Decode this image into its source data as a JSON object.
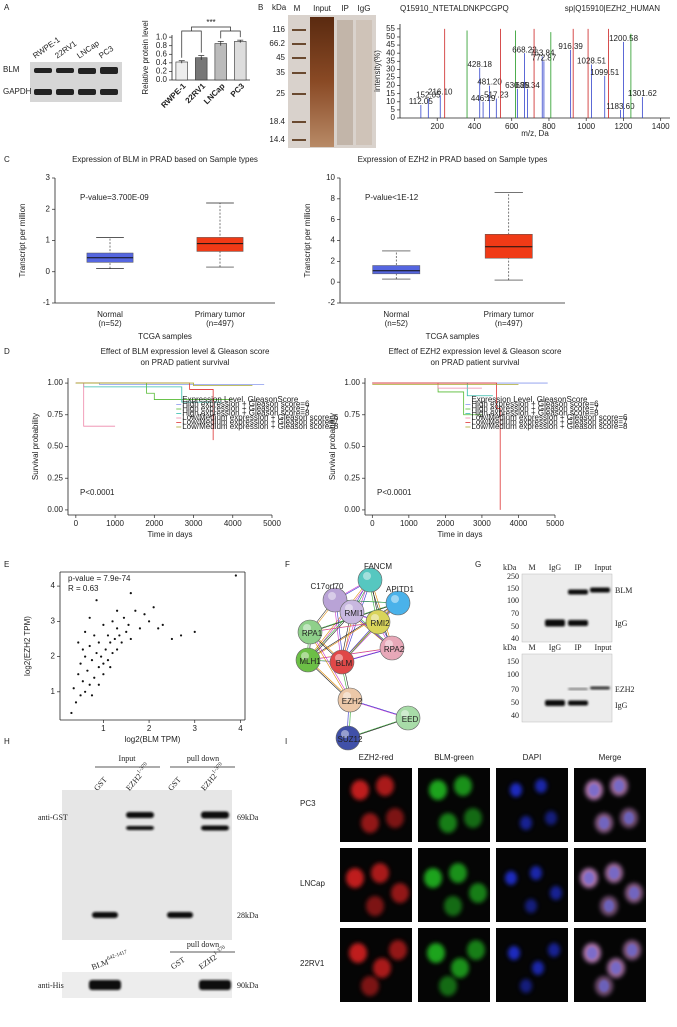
{
  "panel_letters": [
    "A",
    "B",
    "C",
    "D",
    "E",
    "F",
    "G",
    "H",
    "I"
  ],
  "panel_a": {
    "cell_lines": [
      "RWPE-1",
      "22RV1",
      "LNCap",
      "PC3"
    ],
    "proteins": [
      "BLM",
      "GAPDH"
    ]
  },
  "panel_b": {
    "kda": "kDa",
    "lanes": [
      "M",
      "Input",
      "IP",
      "IgG"
    ],
    "markers": [
      "116",
      "66.2",
      "45",
      "35",
      "25",
      "18.4",
      "14.4"
    ]
  },
  "panel_f": {
    "nodes": [
      "FANCM",
      "C17orf70",
      "APITD1",
      "RMI1",
      "RMI2",
      "RPA1",
      "RPA2",
      "MLH1",
      "BLM",
      "EZH2",
      "EED",
      "SUZ12"
    ]
  },
  "panel_g": {
    "blots": [
      {
        "kda": "kDa",
        "lanes": [
          "M",
          "IgG",
          "IP",
          "Input"
        ],
        "markers": [
          "250",
          "150",
          "100",
          "70",
          "50",
          "40"
        ],
        "bands": [
          "BLM",
          "IgG"
        ]
      },
      {
        "kda": "kDa",
        "lanes": [
          "M",
          "IgG",
          "IP",
          "Input"
        ],
        "markers": [
          "150",
          "100",
          "70",
          "50",
          "40"
        ],
        "bands": [
          "EZH2",
          "IgG"
        ]
      }
    ]
  },
  "panel_h": {
    "upper": {
      "groups": [
        "Input",
        "pull down"
      ],
      "lanes": [
        {
          "name": "GST"
        },
        {
          "name": "EZH2",
          "sup": "1-370"
        },
        {
          "name": "GST"
        },
        {
          "name": "EZH2",
          "sup": "1-370"
        }
      ],
      "antibody": "anti-GST",
      "sizes": [
        "69kDa",
        "28kDa"
      ]
    },
    "lower": {
      "group": "pull down",
      "lanes": [
        {
          "name": "BLM",
          "sup": "642-1417"
        },
        {
          "name": "GST"
        },
        {
          "name": "EZH2",
          "sup": "1-370"
        }
      ],
      "antibody": "anti-His",
      "size": "90kDa"
    }
  },
  "panel_i": {
    "channels": [
      "EZH2-red",
      "BLM-green",
      "DAPI",
      "Merge"
    ],
    "cell_lines": [
      "PC3",
      "LNCap",
      "22RV1"
    ]
  },
  "chart_data": [
    {
      "type": "bar",
      "ylabel": "Relative protein level",
      "categories": [
        "RWPE-1",
        "22RV1",
        "LNCap",
        "PC3"
      ],
      "values": [
        0.42,
        0.52,
        0.85,
        0.9
      ],
      "errors": [
        0.03,
        0.05,
        0.05,
        0.03
      ],
      "colors": [
        "#eeeeee",
        "#777777",
        "#bbbbbb",
        "#dddddd"
      ],
      "ylim": [
        0,
        1.05
      ],
      "yticks": [
        {
          "value": 0,
          "label": "0.0"
        },
        0.2,
        0.4,
        0.6,
        0.8,
        {
          "value": 1,
          "label": "1.0"
        }
      ],
      "significance": "***"
    },
    {
      "type": "stem",
      "title": "Q15910_NTETALDNKPCGPQ",
      "subtitle": "sp|Q15910|EZH2_HUMAN",
      "xlabel": "m/z, Da",
      "ylabel": "intensity(%)",
      "x": [
        112.05,
        152.05,
        216.1,
        240,
        360,
        428.18,
        446.19,
        481.2,
        517.23,
        540,
        620,
        630.28,
        668.22,
        685.34,
        720,
        763.84,
        772.87,
        810,
        916.39,
        930,
        1010,
        1028.51,
        1099.51,
        1120,
        1183.6,
        1200.58,
        1240,
        1301.62
      ],
      "values": [
        8,
        12,
        14,
        55,
        54,
        31,
        10,
        20,
        12,
        55,
        54,
        18,
        40,
        18,
        55,
        38,
        35,
        53,
        42,
        55,
        55,
        33,
        26,
        55,
        5,
        47,
        52,
        13
      ],
      "peak_labels": [
        "112.05",
        "152.05",
        "216.10",
        null,
        null,
        "428.18",
        "446.19",
        "481.20",
        "517.23",
        null,
        null,
        "630.28",
        "668.22",
        "685.34",
        null,
        "763.84",
        "772.87",
        null,
        "916.39",
        null,
        null,
        "1028.51",
        "1099.51",
        null,
        "1183.60",
        "1200.58",
        null,
        "1301.62"
      ],
      "colors": [
        "#3344cc",
        "#3344cc",
        "#3344cc",
        "#cc2222",
        "#229922",
        "#3344cc",
        "#3344cc",
        "#3344cc",
        "#3344cc",
        "#cc2222",
        "#229922",
        "#3344cc",
        "#3344cc",
        "#3344cc",
        "#cc2222",
        "#3344cc",
        "#3344cc",
        "#229922",
        "#3344cc",
        "#cc2222",
        "#cc2222",
        "#3344cc",
        "#3344cc",
        "#cc2222",
        "#3344cc",
        "#3344cc",
        "#229922",
        "#3344cc"
      ],
      "xlim": [
        0,
        1450
      ],
      "xticks": [
        200,
        400,
        600,
        800,
        1000,
        1200,
        1400
      ],
      "ylim": [
        0,
        58
      ],
      "yticks": [
        0,
        5,
        10,
        15,
        20,
        25,
        30,
        35,
        40,
        45,
        50,
        55
      ]
    },
    {
      "type": "box",
      "title": "Expression of BLM in PRAD based on Sample types",
      "xlabel": "TCGA samples",
      "ylabel": "Transcript per million",
      "annotation": "P-value=3.700E-09",
      "categories": [
        "Normal",
        "Primary tumor"
      ],
      "sample_sizes": [
        "(n=52)",
        "(n=497)"
      ],
      "min": [
        0.1,
        0.15
      ],
      "q1": [
        0.3,
        0.65
      ],
      "median": [
        0.45,
        0.9
      ],
      "q3": [
        0.6,
        1.1
      ],
      "max": [
        1.1,
        2.2
      ],
      "colors": [
        "#5566e0",
        "#f03a16"
      ],
      "ylim": [
        -1,
        3
      ],
      "yticks": [
        -1,
        0,
        1,
        2,
        3
      ]
    },
    {
      "type": "box",
      "title": "Expression of EZH2 in PRAD based on Sample types",
      "xlabel": "TCGA samples",
      "ylabel": "Transcript per million",
      "annotation": "P-value<1E-12",
      "categories": [
        "Normal",
        "Primary tumor"
      ],
      "sample_sizes": [
        "(n=52)",
        "(n=497)"
      ],
      "min": [
        0.3,
        0.2
      ],
      "q1": [
        0.8,
        2.3
      ],
      "median": [
        1.1,
        3.4
      ],
      "q3": [
        1.6,
        4.6
      ],
      "max": [
        3.0,
        8.6
      ],
      "colors": [
        "#5566e0",
        "#f03a16"
      ],
      "ylim": [
        -2,
        10
      ],
      "yticks": [
        -2,
        0,
        2,
        4,
        6,
        8,
        10
      ]
    },
    {
      "type": "line",
      "title": [
        "Effect of BLM expression level & Gleason score",
        "on PRAD patient survival"
      ],
      "xlabel": "Time in days",
      "ylabel": "Survival probability",
      "annotation": "P<0.0001",
      "legend_title": "Expression Level, GleasonScore",
      "series": [
        {
          "name": "High expression + Gleason score=6",
          "color": "#8899ee",
          "x": [
            0,
            600,
            600,
            4800
          ],
          "values": [
            1,
            1,
            0.99,
            0.99
          ]
        },
        {
          "name": "High expression + Gleason score=7",
          "color": "#55bb33",
          "x": [
            0,
            1800,
            1800,
            2000,
            2000,
            4000
          ],
          "values": [
            1,
            1,
            0.92,
            0.92,
            0.87,
            0.87
          ]
        },
        {
          "name": "High expression + Gleason score=8",
          "color": "#33bbaa",
          "x": [
            0,
            200,
            200,
            2700,
            2700,
            3700
          ],
          "values": [
            1,
            1,
            0.97,
            0.97,
            0.85,
            0.85
          ]
        },
        {
          "name": "Low/Medium expression + Gleason score=6",
          "color": "#ee88aa",
          "x": [
            0,
            200,
            200,
            1000
          ],
          "values": [
            1,
            1,
            0.66,
            0.66
          ]
        },
        {
          "name": "Low/Medium expression + Gleason score=7",
          "color": "#dd3333",
          "x": [
            0,
            2900,
            2900,
            3500,
            3500
          ],
          "values": [
            1,
            1,
            0.95,
            0.95,
            0.55
          ]
        },
        {
          "name": "Low/Medium expression + Gleason score=8",
          "color": "#aaaa33",
          "x": [
            0,
            3000,
            3000,
            4500
          ],
          "values": [
            1,
            1,
            0.98,
            0.98
          ]
        }
      ],
      "xlim": [
        -200,
        5000
      ],
      "xticks": [
        0,
        1000,
        2000,
        3000,
        4000,
        5000
      ],
      "ylim": [
        -0.04,
        1.04
      ],
      "yticks": [
        {
          "value": 0,
          "label": "0.00"
        },
        {
          "value": 0.25,
          "label": "0.25"
        },
        {
          "value": 0.5,
          "label": "0.50"
        },
        {
          "value": 0.75,
          "label": "0.75"
        },
        {
          "value": 1,
          "label": "1.00"
        }
      ]
    },
    {
      "type": "line",
      "title": [
        "Effect of EZH2 expression level & Gleason score",
        "on PRAD patient survival"
      ],
      "xlabel": "Time in days",
      "ylabel": "Survival probability",
      "annotation": "P<0.0001",
      "legend_title": "Expression Level, GleasonScore",
      "series": [
        {
          "name": "High expression + Gleason score=6",
          "color": "#8899ee",
          "x": [
            0,
            4800
          ],
          "values": [
            1,
            1
          ]
        },
        {
          "name": "High expression + Gleason score=7",
          "color": "#55bb33",
          "x": [
            0,
            1800,
            1800,
            2500,
            2500,
            3000
          ],
          "values": [
            1,
            1,
            0.93,
            0.93,
            0.75,
            0.75
          ]
        },
        {
          "name": "High expression + Gleason score=8",
          "color": "#33bbaa",
          "x": [
            0,
            2600,
            2600,
            3300
          ],
          "values": [
            1,
            1,
            0.9,
            0.9
          ]
        },
        {
          "name": "Low/Medium expression + Gleason score=6",
          "color": "#ee88aa",
          "x": [
            0,
            1800,
            1800,
            3000
          ],
          "values": [
            1,
            1,
            0.96,
            0.96
          ]
        },
        {
          "name": "Low/Medium expression + Gleason score=7",
          "color": "#dd3333",
          "x": [
            0,
            3400,
            3400,
            3500,
            3500
          ],
          "values": [
            1,
            1,
            0.8,
            0.8,
            0
          ]
        },
        {
          "name": "Low/Medium expression + Gleason score=8",
          "color": "#aaaa33",
          "x": [
            0,
            4000
          ],
          "values": [
            0.99,
            0.99
          ]
        }
      ],
      "xlim": [
        -200,
        5000
      ],
      "xticks": [
        0,
        1000,
        2000,
        3000,
        4000,
        5000
      ],
      "ylim": [
        -0.04,
        1.04
      ],
      "yticks": [
        {
          "value": 0,
          "label": "0.00"
        },
        {
          "value": 0.25,
          "label": "0.25"
        },
        {
          "value": 0.5,
          "label": "0.50"
        },
        {
          "value": 0.75,
          "label": "0.75"
        },
        {
          "value": 1,
          "label": "1.00"
        }
      ]
    },
    {
      "type": "scatter",
      "xlabel": "log2(BLM TPM)",
      "ylabel": "log2(EZH2 TPM)",
      "annotations": [
        "p-value = 7.9e-74",
        "R = 0.63"
      ],
      "color": "#111111",
      "x": [
        0.3,
        0.35,
        0.4,
        0.45,
        0.5,
        0.5,
        0.55,
        0.6,
        0.6,
        0.65,
        0.7,
        0.7,
        0.75,
        0.8,
        0.8,
        0.85,
        0.9,
        0.9,
        0.95,
        1.0,
        1.0,
        1.05,
        1.1,
        1.1,
        1.15,
        1.2,
        1.2,
        1.25,
        1.3,
        1.3,
        1.35,
        1.4,
        1.45,
        1.5,
        1.55,
        1.6,
        1.7,
        1.8,
        1.9,
        2.0,
        2.1,
        2.3,
        2.5,
        2.7,
        3.0,
        3.9,
        0.45,
        0.6,
        0.75,
        0.9,
        1.0,
        1.15,
        0.7,
        0.85,
        1.3,
        0.55,
        1.6,
        2.2
      ],
      "values": [
        0.4,
        1.1,
        0.7,
        1.5,
        0.9,
        1.8,
        1.3,
        1.0,
        2.0,
        1.6,
        1.2,
        2.3,
        1.9,
        1.4,
        2.6,
        2.1,
        1.7,
        2.4,
        2.0,
        1.8,
        2.9,
        2.2,
        1.9,
        2.6,
        2.4,
        2.1,
        3.0,
        2.5,
        2.2,
        2.8,
        2.6,
        2.4,
        3.1,
        2.7,
        2.9,
        2.5,
        3.3,
        2.8,
        3.2,
        3.0,
        3.4,
        2.9,
        2.5,
        2.6,
        2.7,
        4.3,
        2.4,
        2.7,
        0.9,
        1.2,
        1.5,
        1.7,
        3.1,
        3.6,
        3.3,
        2.2,
        3.8,
        2.8
      ],
      "xlim": [
        0.05,
        4.1
      ],
      "xticks": [
        1,
        2,
        3,
        4
      ],
      "ylim": [
        0.2,
        4.4
      ],
      "yticks": [
        1,
        2,
        3,
        4
      ]
    }
  ]
}
